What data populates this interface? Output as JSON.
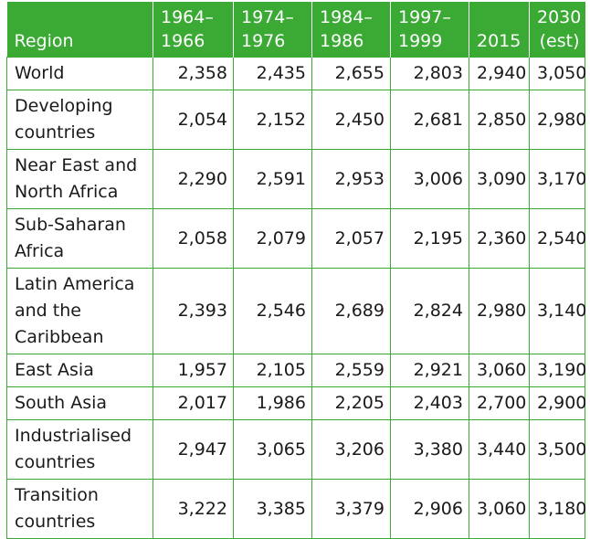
{
  "table": {
    "headers": [
      "Region",
      "1964–\n1966",
      "1974–\n1976",
      "1984–\n1986",
      "1997–\n1999",
      "2015",
      "2030\n(est)"
    ],
    "rows": [
      {
        "region": [
          "World"
        ],
        "values": [
          "2,358",
          "2,435",
          "2,655",
          "2,803",
          "2,940",
          "3,050"
        ]
      },
      {
        "region": [
          "Developing",
          "countries"
        ],
        "values": [
          "2,054",
          "2,152",
          "2,450",
          "2,681",
          "2,850",
          "2,980"
        ]
      },
      {
        "region": [
          "Near East and",
          "North Africa"
        ],
        "values": [
          "2,290",
          "2,591",
          "2,953",
          "3,006",
          "3,090",
          "3,170"
        ]
      },
      {
        "region": [
          "Sub-Saharan",
          "Africa"
        ],
        "values": [
          "2,058",
          "2,079",
          "2,057",
          "2,195",
          "2,360",
          "2,540"
        ]
      },
      {
        "region": [
          "Latin America",
          "and the",
          "Caribbean"
        ],
        "values": [
          "2,393",
          "2,546",
          "2,689",
          "2,824",
          "2,980",
          "3,140"
        ]
      },
      {
        "region": [
          "East Asia"
        ],
        "values": [
          "1,957",
          "2,105",
          "2,559",
          "2,921",
          "3,060",
          "3,190"
        ]
      },
      {
        "region": [
          "South Asia"
        ],
        "values": [
          "2,017",
          "1,986",
          "2,205",
          "2,403",
          "2,700",
          "2,900"
        ]
      },
      {
        "region": [
          "Industrialised",
          "countries"
        ],
        "values": [
          "2,947",
          "3,065",
          "3,206",
          "3,380",
          "3,440",
          "3,500"
        ]
      },
      {
        "region": [
          "Transition",
          "countries"
        ],
        "values": [
          "3,222",
          "3,385",
          "3,379",
          "2,906",
          "3,060",
          "3,180"
        ]
      }
    ]
  },
  "colors": {
    "header_bg": "#3aaa35",
    "header_text": "#ffffff",
    "border": "#3aaa35"
  }
}
